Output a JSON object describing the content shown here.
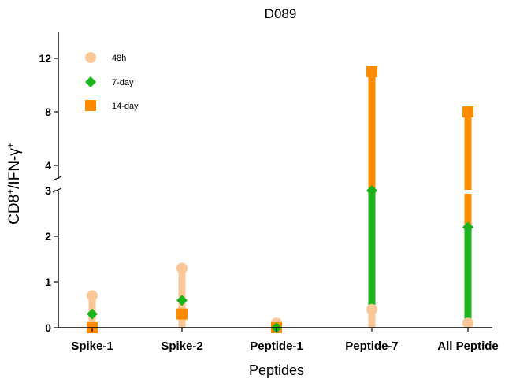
{
  "chart_data": {
    "type": "scatter",
    "title": "D089",
    "xlabel": "Peptides",
    "ylabel": "CD8+/IFN-γ+",
    "categories": [
      "Spike-1",
      "Spike-2",
      "Peptide-1",
      "Peptide-7",
      "All Peptide"
    ],
    "axis_break": {
      "lower_range": [
        0,
        3
      ],
      "upper_range": [
        3,
        14
      ]
    },
    "lower_ticks": [
      0,
      1,
      2,
      3
    ],
    "upper_ticks": [
      4,
      8,
      12
    ],
    "legend_position": "top-left",
    "series": [
      {
        "name": "48h",
        "marker": "circle",
        "color": "#FAC898",
        "values": [
          0.7,
          1.3,
          0.1,
          0.4,
          0.1
        ]
      },
      {
        "name": "7-day",
        "marker": "diamond",
        "color": "#1DB31D",
        "values": [
          0.3,
          0.6,
          0.0,
          3.0,
          2.2
        ]
      },
      {
        "name": "14-day",
        "marker": "square",
        "color": "#FF8C00",
        "values": [
          0.0,
          0.3,
          0.0,
          11.0,
          8.0
        ]
      }
    ]
  }
}
